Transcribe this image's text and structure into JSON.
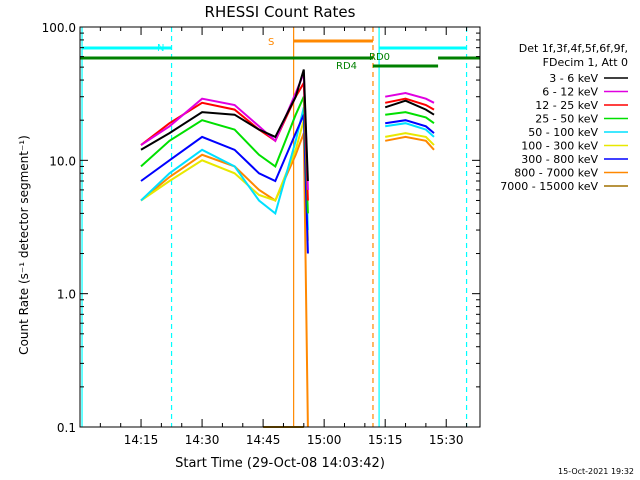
{
  "chart_data": {
    "type": "line",
    "title": "RHESSI Count Rates",
    "xlabel": "Start Time (29-Oct-08 14:03:42)",
    "ylabel": "Count Rate (s⁻¹ detector segment⁻¹)",
    "xscale": "time",
    "x_range": [
      "14:03:42",
      "14:42:00"
    ],
    "x_ticks": [
      "14:15",
      "14:30",
      "14:45",
      "15:00",
      "15:15",
      "15:30"
    ],
    "x_tick_minutes": [
      15,
      30,
      45,
      60,
      75,
      90
    ],
    "x_minor_step_minutes": 5,
    "yscale": "log",
    "ylim": [
      0.1,
      100
    ],
    "y_ticks": [
      "0.1",
      "1.0",
      "10.0",
      "100.0"
    ],
    "y_tick_values": [
      0.1,
      1,
      10,
      100
    ],
    "legend_header": [
      "Det 1f,3f,4f,5f,6f,9f,",
      "FDecim 1, Att 0"
    ],
    "legend_position": "right",
    "series": [
      {
        "name": "3 - 6 keV",
        "color": "#000000",
        "x": [
          15,
          22,
          30,
          38,
          44,
          48,
          53,
          55,
          56,
          75,
          80,
          85,
          87
        ],
        "y": [
          12,
          16,
          23,
          22,
          17,
          15,
          30,
          48,
          7,
          25,
          28,
          24,
          22
        ]
      },
      {
        "name": "6 - 12 keV",
        "color": "#e000e0",
        "x": [
          15,
          22,
          30,
          38,
          44,
          48,
          53,
          55,
          56,
          75,
          80,
          85,
          87
        ],
        "y": [
          13,
          18,
          29,
          26,
          18,
          14,
          32,
          45,
          6,
          30,
          32,
          29,
          27
        ]
      },
      {
        "name": "12 - 25 keV",
        "color": "#ff0000",
        "x": [
          15,
          22,
          30,
          38,
          44,
          48,
          53,
          55,
          56,
          75,
          80,
          85,
          87
        ],
        "y": [
          13,
          19,
          27,
          24,
          17,
          14,
          30,
          38,
          5,
          27,
          29,
          26,
          24
        ]
      },
      {
        "name": "25 - 50 keV",
        "color": "#00e000",
        "x": [
          15,
          22,
          30,
          38,
          44,
          48,
          53,
          55,
          56,
          75,
          80,
          85,
          87
        ],
        "y": [
          9,
          14,
          20,
          17,
          11,
          9,
          22,
          30,
          4,
          22,
          23,
          21,
          19
        ]
      },
      {
        "name": "50 - 100 keV",
        "color": "#00e0ff",
        "x": [
          15,
          22,
          30,
          38,
          44,
          48,
          53,
          55,
          56,
          75,
          80,
          85,
          87
        ],
        "y": [
          5,
          8,
          12,
          9,
          5,
          4,
          14,
          25,
          3,
          18,
          19,
          17,
          15
        ]
      },
      {
        "name": "100 - 300 keV",
        "color": "#e8e800",
        "x": [
          15,
          22,
          30,
          38,
          44,
          48,
          53,
          55,
          56,
          75,
          80,
          85,
          87
        ],
        "y": [
          5,
          7,
          10,
          8,
          5.5,
          5,
          12,
          20,
          2.5,
          15,
          16,
          15,
          13
        ]
      },
      {
        "name": "300 - 800 keV",
        "color": "#0000ff",
        "x": [
          15,
          22,
          30,
          38,
          44,
          48,
          53,
          55,
          56,
          75,
          80,
          85,
          87
        ],
        "y": [
          7,
          10,
          15,
          12,
          8,
          7,
          16,
          22,
          2,
          19,
          20,
          18,
          16
        ]
      },
      {
        "name": "800 - 7000 keV",
        "color": "#ff8800",
        "x": [
          15,
          22,
          30,
          38,
          44,
          48,
          53,
          55,
          56,
          75,
          80,
          85,
          87
        ],
        "y": [
          5,
          7.5,
          11,
          9,
          6,
          5,
          11,
          16,
          0.1,
          14,
          15,
          14,
          12
        ]
      },
      {
        "name": "7000 - 15000 keV",
        "color": "#a07000",
        "x": [
          15,
          30,
          45,
          55,
          75,
          87
        ],
        "y": [
          0.1,
          0.1,
          0.1,
          0.1,
          0.1,
          0.1
        ]
      }
    ],
    "annotations": {
      "night": {
        "label": "N",
        "color": "#00ffff"
      },
      "saa": {
        "label": "S",
        "color": "#ff8800"
      },
      "rd0": {
        "label": "RD0",
        "color": "#008000"
      },
      "rd4": {
        "label": "RD4",
        "color": "#008000"
      }
    },
    "footer_date": "15-Oct-2021 19:32"
  }
}
